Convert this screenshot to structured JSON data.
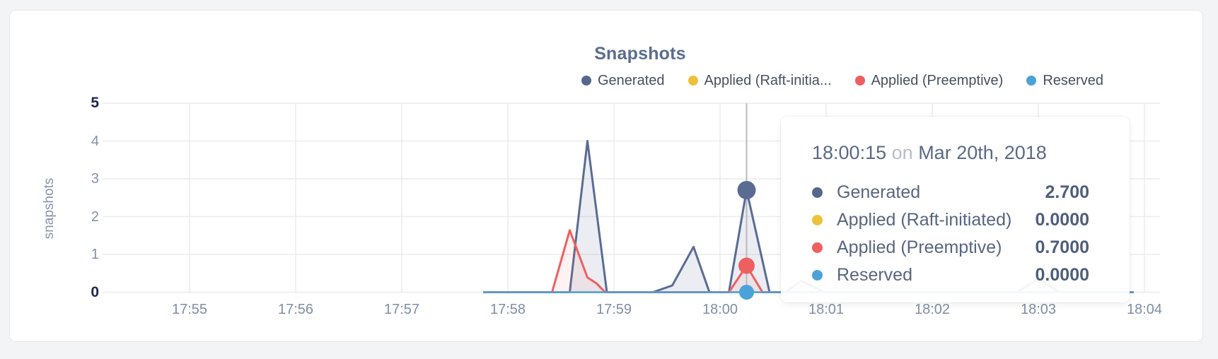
{
  "chart_data": {
    "type": "area",
    "title": "Snapshots",
    "ylabel": "snapshots",
    "x_tick_labels": [
      "17:55",
      "17:56",
      "17:57",
      "17:58",
      "17:59",
      "18:00",
      "18:01",
      "18:02",
      "18:03",
      "18:04"
    ],
    "y_ticks": [
      0,
      1,
      2,
      3,
      4,
      5
    ],
    "ylim": [
      0,
      5
    ],
    "x_unit": "seconds after 17:55",
    "grid": true,
    "legend_position": "top-right",
    "series": [
      {
        "name": "Generated",
        "color": "#5a6c92",
        "fill": "rgba(90,108,146,0.12)",
        "width": 3,
        "points": [
          [
            166,
            0
          ],
          [
            215,
            0
          ],
          [
            225,
            4.0
          ],
          [
            236,
            0
          ],
          [
            262,
            0
          ],
          [
            273,
            0.18
          ],
          [
            285,
            1.2
          ],
          [
            294,
            0
          ],
          [
            305,
            0
          ],
          [
            315,
            2.7
          ],
          [
            328,
            0
          ],
          [
            337,
            0
          ],
          [
            346,
            0.3
          ],
          [
            359,
            0
          ],
          [
            468,
            0
          ],
          [
            480,
            0.35
          ],
          [
            492,
            0
          ],
          [
            534,
            0
          ]
        ]
      },
      {
        "name": "Applied (Raft-initiated)",
        "color": "#efc03a",
        "fill": "none",
        "width": 2.5,
        "points": [
          [
            166,
            0
          ],
          [
            534,
            0
          ]
        ]
      },
      {
        "name": "Applied (Preemptive)",
        "color": "#ee5f5f",
        "fill": "rgba(238,95,95,0.08)",
        "width": 3,
        "points": [
          [
            166,
            0
          ],
          [
            205,
            0
          ],
          [
            215,
            1.64
          ],
          [
            225,
            0.39
          ],
          [
            230,
            0.24
          ],
          [
            235,
            0
          ],
          [
            305,
            0
          ],
          [
            315,
            0.7
          ],
          [
            324,
            0
          ],
          [
            534,
            0
          ]
        ]
      },
      {
        "name": "Reserved",
        "color": "#4aa2d8",
        "fill": "none",
        "width": 2.5,
        "points": [
          [
            166,
            0
          ],
          [
            534,
            0
          ]
        ]
      }
    ],
    "highlight": {
      "x_seconds": 315,
      "time_label": "18:00:15",
      "crosshair_color": "#bbbbbb",
      "dots": [
        {
          "series": 0,
          "value": 2.7,
          "r": 13
        },
        {
          "series": 2,
          "value": 0.7,
          "r": 11.5
        },
        {
          "series": 3,
          "value": 0,
          "r": 10.5
        }
      ]
    }
  },
  "legend": {
    "items": [
      {
        "label": "Generated",
        "color": "#56678c"
      },
      {
        "label": "Applied (Raft-initia...",
        "color": "#efc03a"
      },
      {
        "label": "Applied (Preemptive)",
        "color": "#ee5f5f"
      },
      {
        "label": "Reserved",
        "color": "#4aa2d8"
      }
    ]
  },
  "tooltip": {
    "time": "18:00:15",
    "conjunction": "on",
    "date": "Mar 20th, 2018",
    "rows": [
      {
        "label": "Generated",
        "value": "2.700",
        "color": "#56678c"
      },
      {
        "label": "Applied (Raft-initiated)",
        "value": "0.0000",
        "color": "#efc03a"
      },
      {
        "label": "Applied (Preemptive)",
        "value": "0.7000",
        "color": "#ee5f5f"
      },
      {
        "label": "Reserved",
        "value": "0.0000",
        "color": "#4aa2d8"
      }
    ]
  }
}
